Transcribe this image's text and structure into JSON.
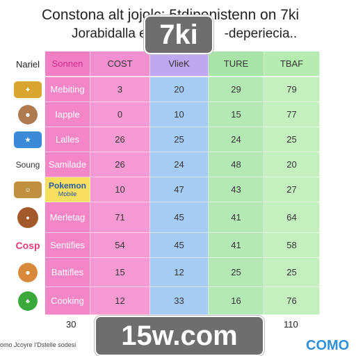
{
  "header": {
    "title": "Constona alt jojolc; 5tdipenistenn on 7ki",
    "subtitle": "Jorabidalla et",
    "subtitle_tail": "-deperiecia.."
  },
  "watermark": {
    "top": "7ki",
    "bottom": "15w.com"
  },
  "table": {
    "columns": [
      "Nariel",
      "Sonnen",
      "COST",
      "VlieK",
      "TURE",
      "TBAF"
    ],
    "rows": [
      {
        "icon": "cartoon-logo-icon",
        "label": "Mebiting",
        "cost": "3",
        "week": "20",
        "ture": "29",
        "tbaf": "79"
      },
      {
        "icon": "cartoon-character-icon",
        "label": "Iapple",
        "cost": "0",
        "week": "10",
        "ture": "15",
        "tbaf": "77"
      },
      {
        "icon": "cartoon-logo-icon",
        "label": "Lalles",
        "cost": "26",
        "week": "25",
        "ture": "24",
        "tbaf": "25"
      },
      {
        "icon": "Soung",
        "label": "Samilade",
        "cost": "26",
        "week": "24",
        "ture": "48",
        "tbaf": "20"
      },
      {
        "icon": "pokemon-logo-icon",
        "label": "Pokemon",
        "label_sub": "Mobile",
        "cost": "10",
        "week": "47",
        "ture": "43",
        "tbaf": "27"
      },
      {
        "icon": "cartoon-character-icon",
        "label": "Merletag",
        "cost": "71",
        "week": "45",
        "ture": "41",
        "tbaf": "64"
      },
      {
        "icon": "Cosp",
        "label": "Sentifies",
        "cost": "54",
        "week": "45",
        "ture": "41",
        "tbaf": "58"
      },
      {
        "icon": "cartoon-character-icon",
        "label": "Battifles",
        "cost": "15",
        "week": "12",
        "ture": "25",
        "tbaf": "25"
      },
      {
        "icon": "cartoon-character-icon",
        "label": "Cooking",
        "cost": "12",
        "week": "33",
        "ture": "16",
        "tbaf": "76"
      }
    ],
    "footer_left": "30",
    "footer_right": "110"
  },
  "caption": "omo Jcoyre I'Dstelle sodesi",
  "logo": "COMO",
  "colors": {
    "pink": "#f486c8",
    "blue": "#a7ccf4",
    "green": "#b4e8b4",
    "badge": "#6e6e6e",
    "logo": "#2f8fd8"
  }
}
